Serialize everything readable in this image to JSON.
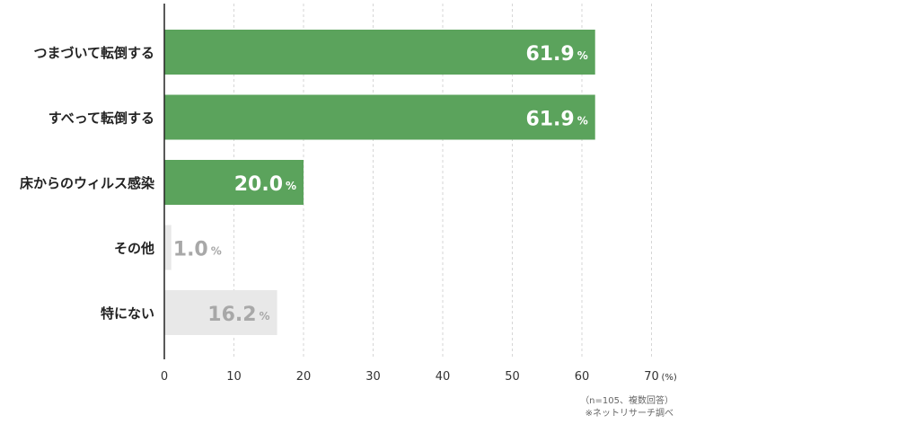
{
  "chart_data": {
    "type": "bar",
    "orientation": "horizontal",
    "categories": [
      "つまづいて転倒する",
      "すべって転倒する",
      "床からのウィルス感染",
      "その他",
      "特にない"
    ],
    "values": [
      61.9,
      61.9,
      20.0,
      1.0,
      16.2
    ],
    "value_labels": [
      "61.9",
      "61.9",
      "20.0",
      "1.0",
      "16.2"
    ],
    "value_unit": "%",
    "bar_colors": [
      "#5ba35c",
      "#5ba35c",
      "#5ba35c",
      "#e8e8e8",
      "#e8e8e8"
    ],
    "label_colors": [
      "#ffffff",
      "#ffffff",
      "#ffffff",
      "#a8a8a8",
      "#a8a8a8"
    ],
    "xlim": [
      0,
      70
    ],
    "xticks": [
      0,
      10,
      20,
      30,
      40,
      50,
      60,
      70
    ],
    "x_unit_label": "(%)",
    "grid": true
  },
  "notes": {
    "sample": "（n=105、複数回答）",
    "source": "※ネットリサーチ調べ"
  }
}
